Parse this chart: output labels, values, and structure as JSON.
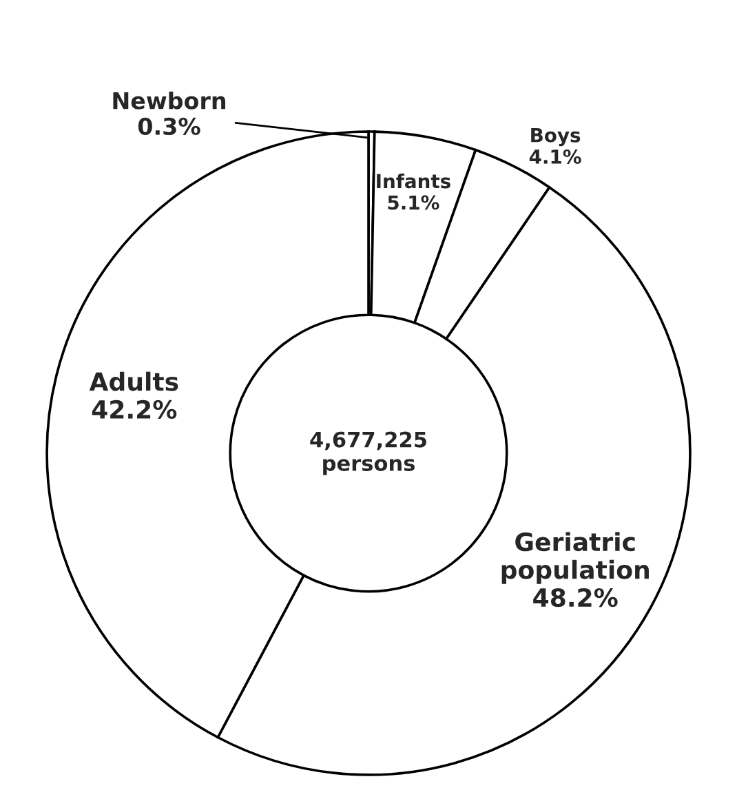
{
  "chart_data": {
    "type": "donut",
    "categories": [
      "Newborn",
      "Infants",
      "Boys",
      "Geriatric population",
      "Adults"
    ],
    "values": [
      0.3,
      5.1,
      4.1,
      48.2,
      42.2
    ],
    "value_labels": [
      "0.3%",
      "5.1%",
      "4.1%",
      "48.2%",
      "42.2%"
    ],
    "colors": [
      "#ffffff",
      "#ffffff",
      "#ffffff",
      "#ffffff",
      "#ffffff"
    ],
    "annotations": [
      "4,677,225\npersons"
    ]
  }
}
